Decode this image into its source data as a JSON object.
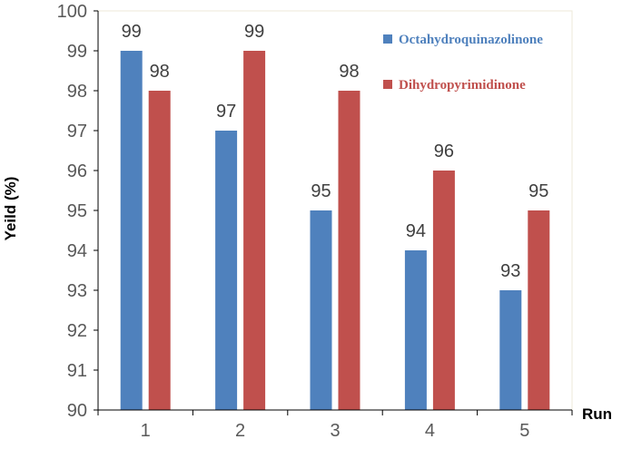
{
  "chart_data": {
    "type": "bar",
    "categories": [
      "1",
      "2",
      "3",
      "4",
      "5"
    ],
    "series": [
      {
        "name": "Octahydroquinazolinone",
        "values": [
          99,
          97,
          95,
          94,
          93
        ],
        "color": "#4f81bd",
        "label_color": "#4f81bd"
      },
      {
        "name": "Dihydropyrimidinone",
        "values": [
          98,
          99,
          98,
          96,
          95
        ],
        "color": "#c0504d",
        "label_color": "#c0504d"
      }
    ],
    "title": "",
    "xlabel": "Run",
    "ylabel": "Yeild (%)",
    "ylim": [
      90,
      100
    ],
    "yticks": [
      90,
      91,
      92,
      93,
      94,
      95,
      96,
      97,
      98,
      99,
      100
    ],
    "grid": false,
    "legend_position": "top-right",
    "plot_border_color": "#ece9d8",
    "axis_color": "#000000"
  }
}
